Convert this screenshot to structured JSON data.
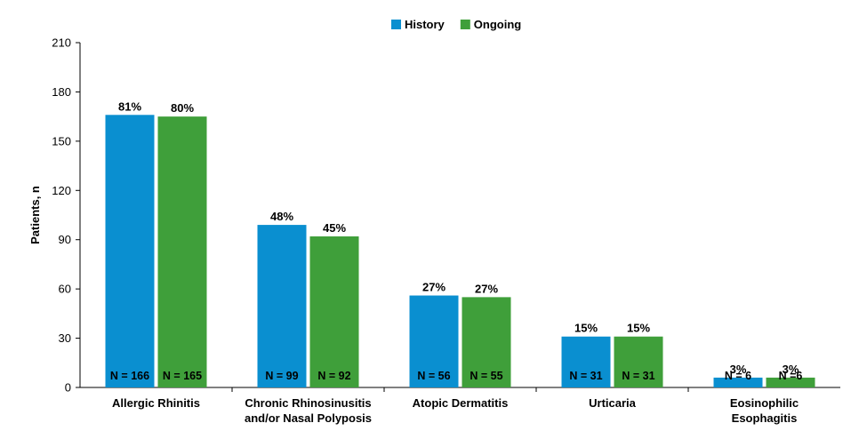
{
  "chart_data": {
    "type": "bar",
    "ylabel": "Patients, n",
    "ylim": [
      0,
      210
    ],
    "yticks": [
      0,
      30,
      60,
      90,
      120,
      150,
      180,
      210
    ],
    "grid": false,
    "legend_position": "top-center",
    "categories": [
      [
        "Allergic Rhinitis"
      ],
      [
        "Chronic Rhinosinusitis",
        "and/or Nasal Polyposis"
      ],
      [
        "Atopic Dermatitis"
      ],
      [
        "Urticaria"
      ],
      [
        "Eosinophilic",
        "Esophagitis"
      ]
    ],
    "series": [
      {
        "name": "History",
        "color": "#0a8fd0",
        "values": [
          166,
          99,
          56,
          31,
          6
        ],
        "percent_labels": [
          "81%",
          "48%",
          "27%",
          "15%",
          "3%"
        ],
        "n_labels": [
          "N = 166",
          "N = 99",
          "N = 56",
          "N = 31",
          "N = 6"
        ]
      },
      {
        "name": "Ongoing",
        "color": "#3f9f3a",
        "values": [
          165,
          92,
          55,
          31,
          6
        ],
        "percent_labels": [
          "80%",
          "45%",
          "27%",
          "15%",
          "3%"
        ],
        "n_labels": [
          "N = 165",
          "N = 92",
          "N = 55",
          "N = 31",
          "N =6"
        ]
      }
    ]
  }
}
